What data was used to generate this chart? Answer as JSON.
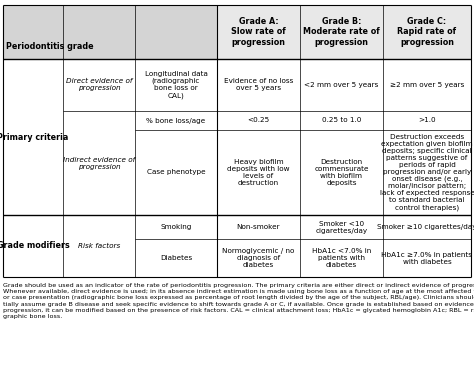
{
  "header_row": [
    "Grade A:\nSlow rate of\nprogression",
    "Grade B:\nModerate rate of\nprogression",
    "Grade C:\nRapid rate of\nprogression"
  ],
  "periodontitis_grade_label": "Periodontitis grade",
  "primary_criteria_label": "Primary criteria",
  "grade_modifiers_label": "Grade modifiers",
  "direct_evidence_label": "Direct evidence of\nprogression",
  "indirect_evidence_label": "Indirect evidence of\nprogression",
  "risk_factors_label": "Risk factors",
  "rows": [
    {
      "criterion": "Longitudinal data\n(radiographic\nbone loss or\nCAL)",
      "grade_a": "Evidence of no loss\nover 5 years",
      "grade_b": "<2 mm over 5 years",
      "grade_c": "≥2 mm over 5 years",
      "section": "direct"
    },
    {
      "criterion": "% bone loss/age",
      "grade_a": "<0.25",
      "grade_b": "0.25 to 1.0",
      "grade_c": ">1.0",
      "section": "indirect"
    },
    {
      "criterion": "Case phenotype",
      "grade_a": "Heavy biofilm\ndeposits with low\nlevels of\ndestruction",
      "grade_b": "Destruction\ncommensurate\nwith biofilm\ndeposits",
      "grade_c": "Destruction exceeds\nexpectation given biofilm\ndeposits; specific clinical\npatterns suggestive of\nperiods of rapid\nprogression and/or early\nonset disease (e.g.,\nmolar/incisor pattern;\nlack of expected response\nto standard bacterial\ncontrol therapies)",
      "section": "indirect"
    },
    {
      "criterion": "Smoking",
      "grade_a": "Non-smoker",
      "grade_b": "Smoker <10\ncigarettes/day",
      "grade_c": "Smoker ≥10 cigarettes/day",
      "section": "risk"
    },
    {
      "criterion": "Diabetes",
      "grade_a": "Normoglycemic / no\ndiagnosis of\ndiabetes",
      "grade_b": "HbA1c <7.0% in\npatients with\ndiabetes",
      "grade_c": "HbA1c ≥7.0% in patients\nwith diabetes",
      "section": "risk"
    }
  ],
  "footnote": "Grade should be used as an indicator of the rate of periodontitis progression. The primary criteria are either direct or indirect evidence of progression.\nWhenever available, direct evidence is used; in its absence indirect estimation is made using bone loss as a function of age at the most affected tooth\nor case presentation (radiographic bone loss expressed as percentage of root length divided by the age of the subject, RBL/age). Clinicians should ini-\ntially assume grade B disease and seek specific evidence to shift towards grade A or C, if available. Once grade is established based on evidence of\nprogression, it can be modified based on the presence of risk factors. CAL = clinical attachment loss; HbA1c = glycated hemoglobin A1c; RBL = radio-\ngraphic bone loss.",
  "background_color": "#ffffff",
  "header_bg": "#d4d4d4",
  "body_bg": "#ffffff",
  "line_color": "#000000",
  "font_size_header": 5.8,
  "font_size_body": 5.2,
  "font_size_label": 5.8,
  "font_size_footnote": 4.6
}
